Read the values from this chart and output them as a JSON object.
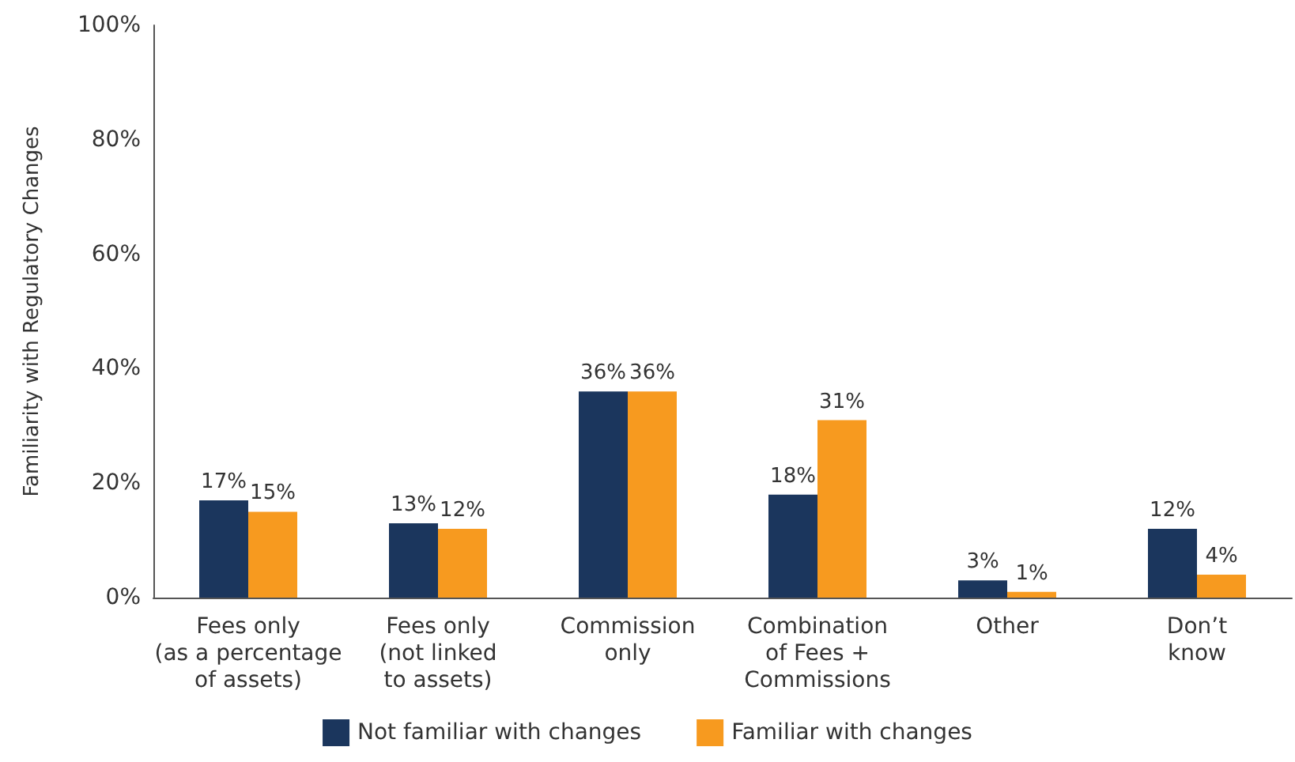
{
  "chart_data": {
    "type": "bar",
    "ylabel": "Familiarity with Regulatory Changes",
    "categories": [
      "Fees only\n(as a percentage\nof assets)",
      "Fees only\n(not linked\nto assets)",
      "Commission\nonly",
      "Combination\nof Fees +\nCommissions",
      "Other",
      "Don’t\nknow"
    ],
    "series": [
      {
        "name": "Not familiar with changes",
        "color": "#1b365d",
        "values": [
          17,
          13,
          36,
          18,
          3,
          12
        ],
        "value_labels": [
          "17%",
          "13%",
          "36%",
          "18%",
          "3%",
          "12%"
        ]
      },
      {
        "name": "Familiar with changes",
        "color": "#f79a1f",
        "values": [
          15,
          12,
          36,
          31,
          1,
          4
        ],
        "value_labels": [
          "15%",
          "12%",
          "36%",
          "31%",
          "1%",
          "4%"
        ]
      }
    ],
    "ylim": [
      0,
      100
    ],
    "yticks": [
      {
        "value": 0,
        "label": "0%"
      },
      {
        "value": 20,
        "label": "20%"
      },
      {
        "value": 40,
        "label": "40%"
      },
      {
        "value": 60,
        "label": "60%"
      },
      {
        "value": 80,
        "label": "80%"
      },
      {
        "value": 100,
        "label": "100%"
      }
    ],
    "grid": false,
    "legend": "bottom"
  }
}
